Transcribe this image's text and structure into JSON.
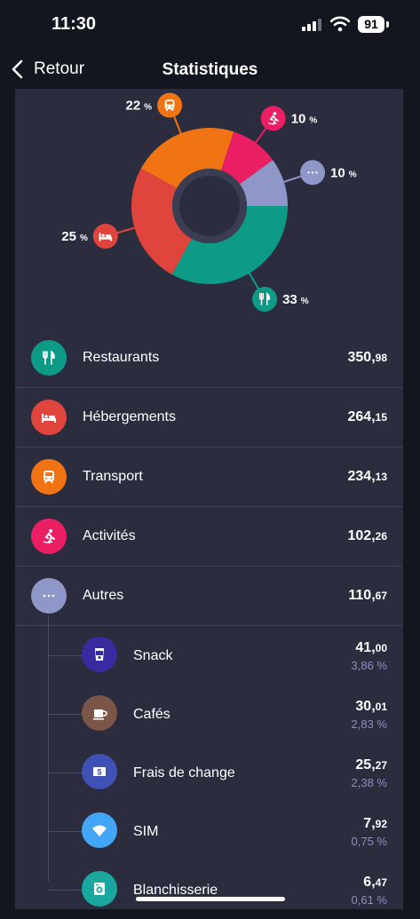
{
  "status": {
    "time": "11:30",
    "battery": "91"
  },
  "nav": {
    "back_label": "Retour",
    "title": "Statistiques"
  },
  "chart_data": {
    "type": "pie",
    "categories": [
      "Restaurants",
      "Hébergements",
      "Transport",
      "Activités",
      "Autres"
    ],
    "values": [
      33,
      25,
      22,
      10,
      10
    ],
    "colors": [
      "#0d9a87",
      "#e0453d",
      "#f07414",
      "#e91e63",
      "#8e97c7"
    ],
    "labels": [
      "33",
      "25",
      "22",
      "10",
      "10"
    ],
    "unit": "%"
  },
  "categories": [
    {
      "label": "Restaurants",
      "amount_int": "350,",
      "amount_dec": "98",
      "color": "#0d9a87",
      "icon": "utensils-icon"
    },
    {
      "label": "Hébergements",
      "amount_int": "264,",
      "amount_dec": "15",
      "color": "#e0453d",
      "icon": "bed-icon"
    },
    {
      "label": "Transport",
      "amount_int": "234,",
      "amount_dec": "13",
      "color": "#f07414",
      "icon": "bus-icon"
    },
    {
      "label": "Activités",
      "amount_int": "102,",
      "amount_dec": "26",
      "color": "#e91e63",
      "icon": "activity-icon"
    },
    {
      "label": "Autres",
      "amount_int": "110,",
      "amount_dec": "67",
      "color": "#8e97c7",
      "icon": "more-icon"
    }
  ],
  "subcategories": [
    {
      "label": "Snack",
      "amount_int": "41,",
      "amount_dec": "00",
      "share": "3,86 %",
      "color": "#3a2aa0",
      "icon": "cup-icon"
    },
    {
      "label": "Cafés",
      "amount_int": "30,",
      "amount_dec": "01",
      "share": "2,83 %",
      "color": "#7a5548",
      "icon": "coffee-icon"
    },
    {
      "label": "Frais de change",
      "amount_int": "25,",
      "amount_dec": "27",
      "share": "2,38 %",
      "color": "#3f51b5",
      "icon": "money-icon"
    },
    {
      "label": "SIM",
      "amount_int": "7,",
      "amount_dec": "92",
      "share": "0,75 %",
      "color": "#42a5f5",
      "icon": "wifi-icon"
    },
    {
      "label": "Blanchisserie",
      "amount_int": "6,",
      "amount_dec": "47",
      "share": "0,61 %",
      "color": "#1aa7a0",
      "icon": "washing-machine-icon"
    }
  ]
}
